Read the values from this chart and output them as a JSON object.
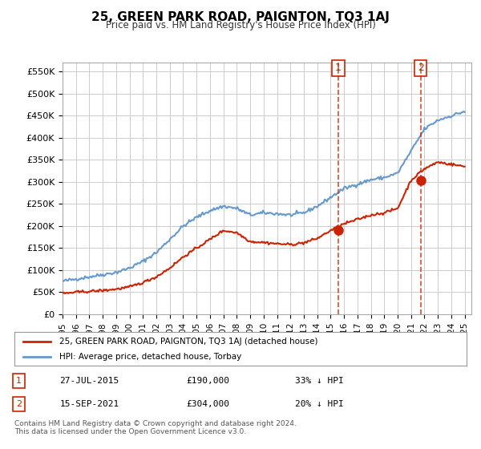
{
  "title": "25, GREEN PARK ROAD, PAIGNTON, TQ3 1AJ",
  "subtitle": "Price paid vs. HM Land Registry's House Price Index (HPI)",
  "ylabel_ticks": [
    "£0",
    "£50K",
    "£100K",
    "£150K",
    "£200K",
    "£250K",
    "£300K",
    "£350K",
    "£400K",
    "£450K",
    "£500K",
    "£550K"
  ],
  "ytick_values": [
    0,
    50000,
    100000,
    150000,
    200000,
    250000,
    300000,
    350000,
    400000,
    450000,
    500000,
    550000
  ],
  "ylim": [
    0,
    570000
  ],
  "xlim_start": 1995.0,
  "xlim_end": 2025.5,
  "hpi_color": "#6699cc",
  "price_color": "#cc2200",
  "marker1_year": 2015.57,
  "marker2_year": 2021.71,
  "marker1_price": 190000,
  "marker2_price": 304000,
  "legend_line1": "25, GREEN PARK ROAD, PAIGNTON, TQ3 1AJ (detached house)",
  "legend_line2": "HPI: Average price, detached house, Torbay",
  "note1_label": "1",
  "note1_date": "27-JUL-2015",
  "note1_price": "£190,000",
  "note1_change": "33% ↓ HPI",
  "note2_label": "2",
  "note2_date": "15-SEP-2021",
  "note2_price": "£304,000",
  "note2_change": "20% ↓ HPI",
  "footer": "Contains HM Land Registry data © Crown copyright and database right 2024.\nThis data is licensed under the Open Government Licence v3.0.",
  "background_color": "#ffffff",
  "grid_color": "#cccccc"
}
